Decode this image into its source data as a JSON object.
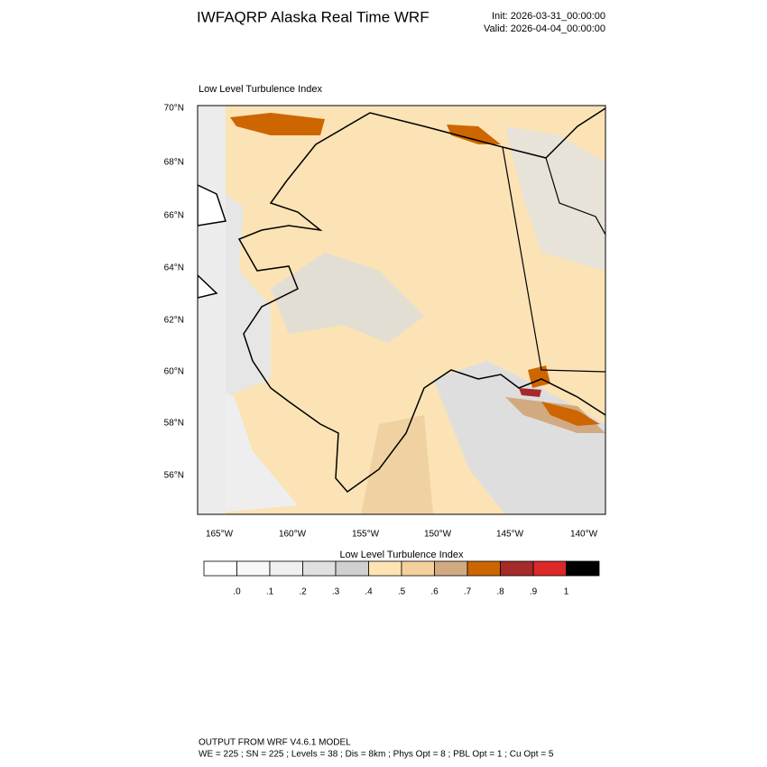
{
  "header": {
    "title": "IWFAQRP Alaska Real Time WRF",
    "init": "Init: 2026-03-31_00:00:00",
    "valid": "Valid: 2026-04-04_00:00:00"
  },
  "map": {
    "title": "Low Level Turbulence Index",
    "lat_labels": [
      "70°N",
      "68°N",
      "66°N",
      "64°N",
      "62°N",
      "60°N",
      "58°N",
      "56°N"
    ],
    "lon_labels": [
      "165°W",
      "160°W",
      "155°W",
      "150°W",
      "145°W",
      "140°W"
    ]
  },
  "colorbar": {
    "title": "Low Level Turbulence Index",
    "colors": [
      "#ffffff",
      "#f8f8f8",
      "#f0f0f0",
      "#e0e0e0",
      "#d0d0d0",
      "#ffe4b4",
      "#f5d09c",
      "#d2aa82",
      "#cd6600",
      "#a52a2a",
      "#dc2828",
      "#000000"
    ],
    "labels": [
      ".0",
      ".1",
      ".2",
      ".3",
      ".4",
      ".5",
      ".6",
      ".7",
      ".8",
      ".9",
      "1"
    ]
  },
  "footer": {
    "line1": "OUTPUT FROM WRF V4.6.1 MODEL",
    "line2": "WE = 225 ; SN = 225 ; Levels = 38 ; Dis = 8km ; Phys Opt = 8 ; PBL Opt = 1 ; Cu Opt = 5"
  }
}
